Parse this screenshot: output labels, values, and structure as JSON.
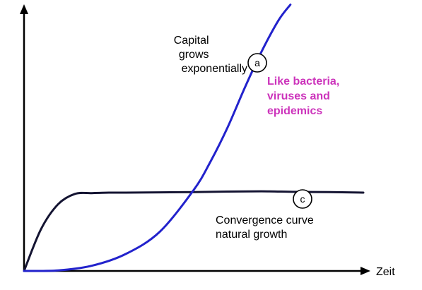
{
  "chart_data": {
    "type": "line",
    "title": "",
    "xlabel": "Zeit",
    "ylabel": "",
    "grid": false,
    "xlim": [
      0,
      10
    ],
    "ylim": [
      0,
      10
    ],
    "series": [
      {
        "name": "",
        "color": "#2222cc",
        "marker": "a",
        "label_lines": [
          "Capital",
          "grows",
          "exponentially"
        ],
        "x": [
          0,
          1,
          2,
          3,
          4,
          5,
          5.5,
          6,
          6.5,
          7,
          7.5,
          7.85
        ],
        "y": [
          0,
          0.02,
          0.2,
          0.65,
          1.5,
          3.1,
          4.2,
          5.5,
          7.0,
          8.4,
          9.6,
          10.2
        ]
      },
      {
        "name": "",
        "color": "#141432",
        "marker": "c",
        "label_lines": [
          "Convergence curve",
          "natural growth"
        ],
        "x": [
          0,
          0.5,
          1,
          1.5,
          2,
          2.5,
          3,
          4,
          5,
          6,
          7,
          8,
          9,
          10
        ],
        "y": [
          0,
          1.6,
          2.55,
          2.95,
          2.98,
          3.0,
          3.0,
          3.01,
          3.02,
          3.04,
          3.05,
          3.03,
          3.02,
          3.0
        ]
      }
    ],
    "annotations": [
      {
        "text_lines": [
          "Like bacteria,",
          "viruses and",
          "epidemics"
        ],
        "color": "#cc33bb"
      }
    ]
  }
}
